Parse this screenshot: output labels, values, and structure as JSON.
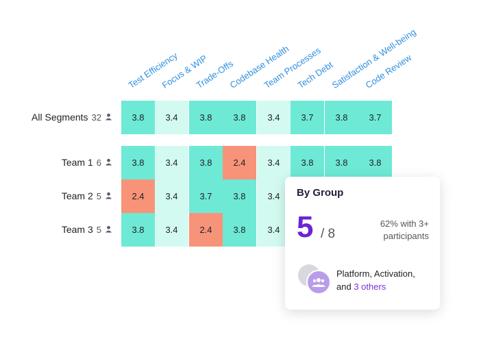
{
  "columns": [
    "Test Efficiency",
    "Focus & WIP",
    "Trade-Offs",
    "Codebase Health",
    "Team Processes",
    "Tech Debt",
    "Satisfaction & Well-being",
    "Code Review"
  ],
  "rows": [
    {
      "label": "All Segments",
      "count": "32",
      "values": [
        "3.8",
        "3.4",
        "3.8",
        "3.8",
        "3.4",
        "3.7",
        "3.8",
        "3.7"
      ]
    },
    {
      "label": "Team 1",
      "count": "6",
      "values": [
        "3.8",
        "3.4",
        "3.8",
        "2.4",
        "3.4",
        "3.8",
        "3.8",
        "3.8"
      ]
    },
    {
      "label": "Team 2",
      "count": "5",
      "values": [
        "2.4",
        "3.4",
        "3.7",
        "3.8",
        "3.4",
        "",
        "",
        ""
      ]
    },
    {
      "label": "Team 3",
      "count": "5",
      "values": [
        "3.8",
        "3.4",
        "2.4",
        "3.8",
        "3.4",
        "",
        "",
        ""
      ]
    }
  ],
  "colors": {
    "high": "#6ee9d5",
    "mid": "#d2faf1",
    "low": "#f79379",
    "header": "#2f8fe0",
    "accent": "#6a24d8"
  },
  "card": {
    "title": "By Group",
    "count": "5",
    "total": "/ 8",
    "pct_line1": "62% with 3+",
    "pct_line2": "participants",
    "groups_text": "Platform, Activation,",
    "and_text": "and",
    "others_link": "3 others"
  }
}
